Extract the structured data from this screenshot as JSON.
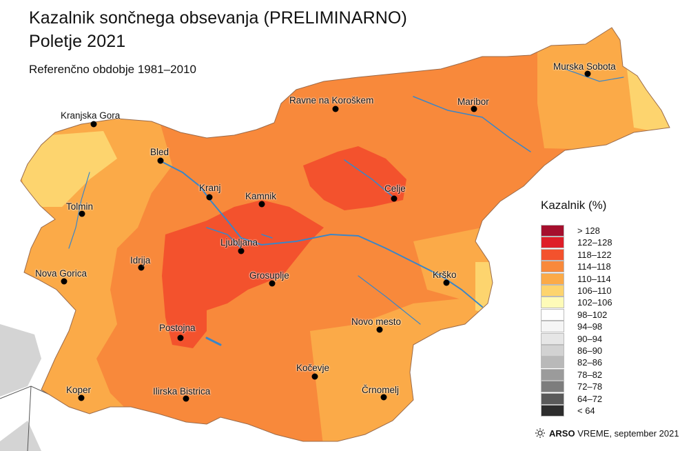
{
  "title_line1": "Kazalnik sončnega obsevanja (PRELIMINARNO)",
  "title_line2": "Poletje 2021",
  "subtitle": "Referenčno obdobje 1981–2010",
  "legend": {
    "title": "Kazalnik (%)",
    "classes": [
      {
        "label": "> 128",
        "color": "#a50f2d"
      },
      {
        "label": "122–128",
        "color": "#de1e28"
      },
      {
        "label": "118–122",
        "color": "#f3522d"
      },
      {
        "label": "114–118",
        "color": "#f8893b"
      },
      {
        "label": "110–114",
        "color": "#fbaa48"
      },
      {
        "label": "106–110",
        "color": "#fdd46e"
      },
      {
        "label": "102–106",
        "color": "#fefbb8"
      },
      {
        "label": "98–102",
        "color": "#ffffff"
      },
      {
        "label": "94–98",
        "color": "#f5f5f5"
      },
      {
        "label": "90–94",
        "color": "#e6e6e6"
      },
      {
        "label": "86–90",
        "color": "#d2d2d2"
      },
      {
        "label": "82–86",
        "color": "#b9b9b9"
      },
      {
        "label": "78–82",
        "color": "#9b9b9b"
      },
      {
        "label": "72–78",
        "color": "#7d7d7d"
      },
      {
        "label": "64–72",
        "color": "#5a5a5a"
      },
      {
        "label": "< 64",
        "color": "#2d2d2d"
      }
    ]
  },
  "cities": [
    {
      "name": "Murska Sobota"
    },
    {
      "name": "Ravne na Koroškem"
    },
    {
      "name": "Maribor"
    },
    {
      "name": "Kranjska Gora"
    },
    {
      "name": "Bled"
    },
    {
      "name": "Kranj"
    },
    {
      "name": "Kamnik"
    },
    {
      "name": "Celje"
    },
    {
      "name": "Tolmin"
    },
    {
      "name": "Ljubljana"
    },
    {
      "name": "Idrija"
    },
    {
      "name": "Nova Gorica"
    },
    {
      "name": "Grosuplje"
    },
    {
      "name": "Krško"
    },
    {
      "name": "Novo mesto"
    },
    {
      "name": "Postojna"
    },
    {
      "name": "Kočevje"
    },
    {
      "name": "Koper"
    },
    {
      "name": "Ilirska Bistrica"
    },
    {
      "name": "Črnomelj"
    }
  ],
  "credit": {
    "brand": "ARSO",
    "product": "VREME",
    "date": ", september 2021"
  },
  "colors": {
    "river": "#3a86c8",
    "outside_land": "#d4d4d4",
    "border": "#555555"
  }
}
